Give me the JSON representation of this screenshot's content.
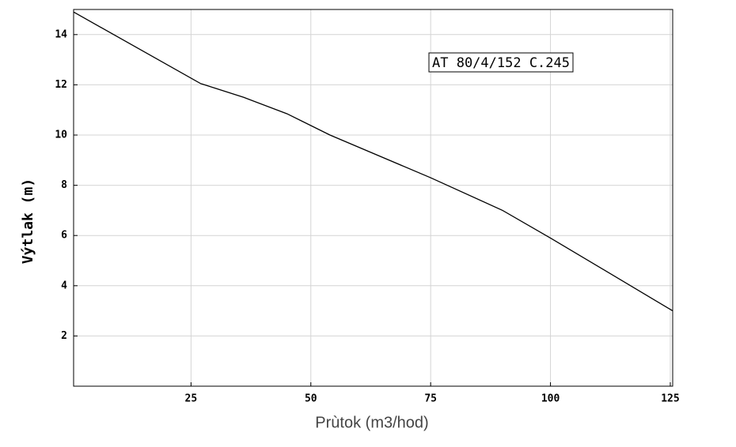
{
  "chart_data": {
    "type": "line",
    "annotation": "AT 80/4/152 C.245",
    "x_label": "Prùtok (m3/hod)",
    "y_label": "Výtlak (m)",
    "x": [
      0.5,
      27,
      36,
      45,
      54,
      75,
      90,
      100,
      125.5
    ],
    "series": [
      {
        "color": "#000000",
        "values": [
          14.9,
          12.05,
          11.5,
          10.85,
          10.0,
          8.3,
          7.0,
          5.9,
          3.0
        ]
      }
    ],
    "xlim": [
      0.5,
      125.5
    ],
    "xticks": [
      25,
      50,
      75,
      100,
      125
    ],
    "ylim": [
      0,
      15
    ],
    "yticks": [
      2,
      4,
      6,
      8,
      10,
      12,
      14
    ],
    "grid": true
  }
}
